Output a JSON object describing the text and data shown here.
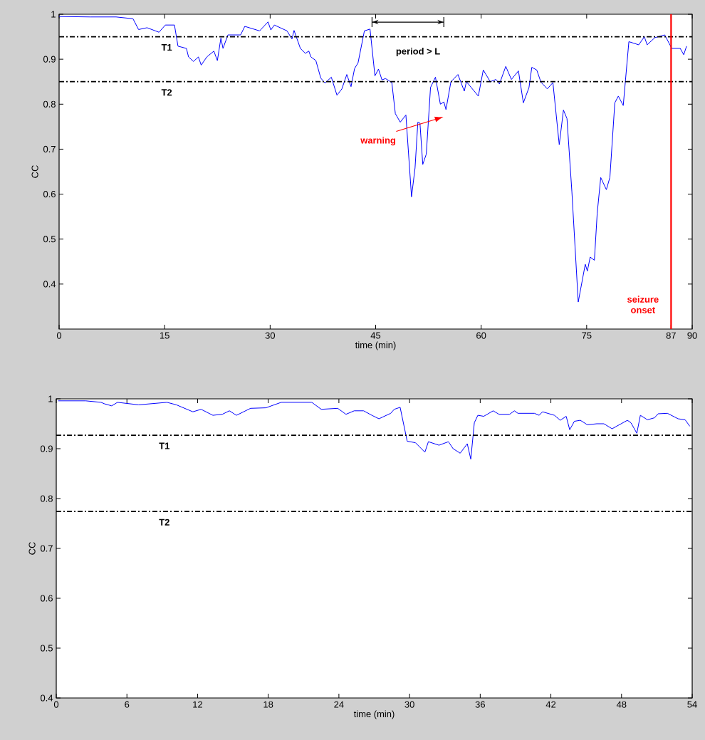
{
  "chart_data": [
    {
      "type": "line",
      "xlabel": "time (min)",
      "ylabel": "CC",
      "xlim": [
        0,
        90
      ],
      "ylim": [
        0.3,
        1
      ],
      "xticks": [
        0,
        15,
        30,
        45,
        60,
        75,
        87,
        90
      ],
      "yticks": [
        0.4,
        0.5,
        0.6,
        0.7,
        0.8,
        0.9,
        1
      ],
      "grid": false,
      "series": [
        {
          "color": "#0000ff",
          "x": [
            0,
            4.4,
            8.1,
            10.5,
            11.3,
            12.5,
            14.2,
            15.1,
            16.4,
            16.9,
            18.1,
            18.4,
            19.1,
            19.8,
            20.2,
            21.0,
            22.0,
            22.5,
            23.0,
            23.3,
            24.0,
            25.8,
            26.4,
            28.5,
            29.7,
            30.1,
            30.6,
            32.4,
            33.1,
            33.4,
            34.3,
            35.0,
            35.5,
            35.8,
            36.5,
            37.2,
            37.8,
            38.7,
            39.5,
            40.2,
            40.9,
            41.5,
            42.0,
            42.5,
            43.4,
            44.2,
            44.9,
            45.4,
            45.9,
            46.4,
            47.3,
            47.8,
            48.5,
            49.3,
            50.1,
            50.6,
            51.0,
            51.3,
            51.7,
            52.2,
            52.8,
            53.5,
            54.2,
            54.7,
            55.0,
            55.7,
            56.7,
            57.6,
            57.9,
            59.6,
            60.3,
            61.3,
            62.1,
            62.6,
            63.5,
            64.3,
            65.3,
            66.0,
            66.8,
            67.2,
            67.9,
            68.5,
            69.4,
            70.2,
            71.1,
            71.7,
            72.2,
            72.9,
            73.8,
            74.8,
            75.1,
            75.5,
            76.1,
            76.5,
            77.0,
            77.8,
            78.3,
            79.0,
            79.5,
            80.2,
            81.0,
            82.4,
            83.2,
            83.6,
            84.7,
            86.1,
            87.1,
            88.3,
            88.8,
            89.2
          ],
          "values": [
            0.995,
            0.994,
            0.994,
            0.99,
            0.966,
            0.97,
            0.96,
            0.976,
            0.976,
            0.929,
            0.924,
            0.905,
            0.895,
            0.905,
            0.887,
            0.905,
            0.918,
            0.897,
            0.947,
            0.924,
            0.954,
            0.954,
            0.973,
            0.963,
            0.983,
            0.965,
            0.976,
            0.963,
            0.945,
            0.964,
            0.924,
            0.913,
            0.918,
            0.905,
            0.897,
            0.858,
            0.847,
            0.86,
            0.82,
            0.834,
            0.866,
            0.839,
            0.879,
            0.892,
            0.963,
            0.967,
            0.863,
            0.878,
            0.854,
            0.857,
            0.848,
            0.779,
            0.76,
            0.776,
            0.594,
            0.658,
            0.76,
            0.758,
            0.666,
            0.689,
            0.837,
            0.86,
            0.8,
            0.805,
            0.788,
            0.85,
            0.866,
            0.829,
            0.85,
            0.818,
            0.876,
            0.85,
            0.855,
            0.845,
            0.884,
            0.855,
            0.874,
            0.803,
            0.837,
            0.882,
            0.876,
            0.849,
            0.834,
            0.848,
            0.71,
            0.787,
            0.768,
            0.605,
            0.36,
            0.444,
            0.429,
            0.46,
            0.453,
            0.558,
            0.637,
            0.61,
            0.637,
            0.803,
            0.818,
            0.797,
            0.939,
            0.932,
            0.95,
            0.932,
            0.948,
            0.954,
            0.924,
            0.924,
            0.91,
            0.929
          ]
        }
      ],
      "ref_lines": [
        {
          "axis": "y",
          "value": 0.95,
          "label": "T1",
          "color": "#000000",
          "line_style": "dashdot"
        },
        {
          "axis": "y",
          "value": 0.85,
          "label": "T2",
          "color": "#000000",
          "line_style": "dashdot"
        },
        {
          "axis": "x",
          "value": 87,
          "label": "seizure onset",
          "color": "#ff0000",
          "line_style": "solid"
        }
      ],
      "annotations": [
        "period > L",
        "warning"
      ]
    },
    {
      "type": "line",
      "xlabel": "time (min)",
      "ylabel": "CC",
      "xlim": [
        0,
        54
      ],
      "ylim": [
        0.4,
        1
      ],
      "xticks": [
        0,
        6,
        12,
        18,
        24,
        30,
        36,
        42,
        48,
        54
      ],
      "yticks": [
        0.4,
        0.5,
        0.6,
        0.7,
        0.8,
        0.9,
        1
      ],
      "grid": false,
      "series": [
        {
          "color": "#0000ff",
          "x": [
            0.16,
            2.5,
            3.8,
            4.1,
            4.7,
            5.2,
            7.0,
            9.4,
            10.2,
            11.6,
            12.3,
            13.3,
            14.1,
            14.7,
            15.3,
            16.5,
            17.8,
            19.1,
            21.7,
            22.5,
            23.9,
            24.6,
            25.3,
            26.1,
            26.8,
            27.4,
            28.4,
            28.7,
            29.2,
            29.8,
            30.5,
            31.3,
            31.6,
            32.5,
            33.3,
            33.7,
            34.3,
            34.9,
            35.2,
            35.5,
            35.8,
            36.3,
            37.1,
            37.6,
            38.5,
            38.9,
            39.2,
            40.6,
            41.0,
            41.3,
            42.3,
            42.8,
            43.3,
            43.6,
            44.0,
            44.5,
            45.1,
            45.9,
            46.5,
            47.2,
            48.5,
            48.8,
            49.3,
            49.6,
            50.2,
            50.8,
            51.1,
            51.9,
            52.8,
            53.4,
            53.8
          ],
          "values": [
            0.996,
            0.996,
            0.993,
            0.99,
            0.986,
            0.993,
            0.988,
            0.993,
            0.988,
            0.974,
            0.979,
            0.967,
            0.969,
            0.976,
            0.967,
            0.981,
            0.982,
            0.993,
            0.993,
            0.979,
            0.981,
            0.969,
            0.976,
            0.976,
            0.967,
            0.96,
            0.971,
            0.979,
            0.983,
            0.915,
            0.912,
            0.893,
            0.914,
            0.907,
            0.914,
            0.9,
            0.891,
            0.91,
            0.879,
            0.952,
            0.967,
            0.965,
            0.976,
            0.969,
            0.969,
            0.976,
            0.971,
            0.971,
            0.967,
            0.974,
            0.967,
            0.957,
            0.965,
            0.938,
            0.955,
            0.957,
            0.948,
            0.95,
            0.95,
            0.94,
            0.957,
            0.952,
            0.931,
            0.967,
            0.958,
            0.962,
            0.97,
            0.971,
            0.96,
            0.958,
            0.945
          ]
        }
      ],
      "ref_lines": [
        {
          "axis": "y",
          "value": 0.927,
          "label": "T1",
          "color": "#000000",
          "line_style": "dashdot"
        },
        {
          "axis": "y",
          "value": 0.774,
          "label": "T2",
          "color": "#000000",
          "line_style": "dashdot"
        }
      ]
    }
  ]
}
